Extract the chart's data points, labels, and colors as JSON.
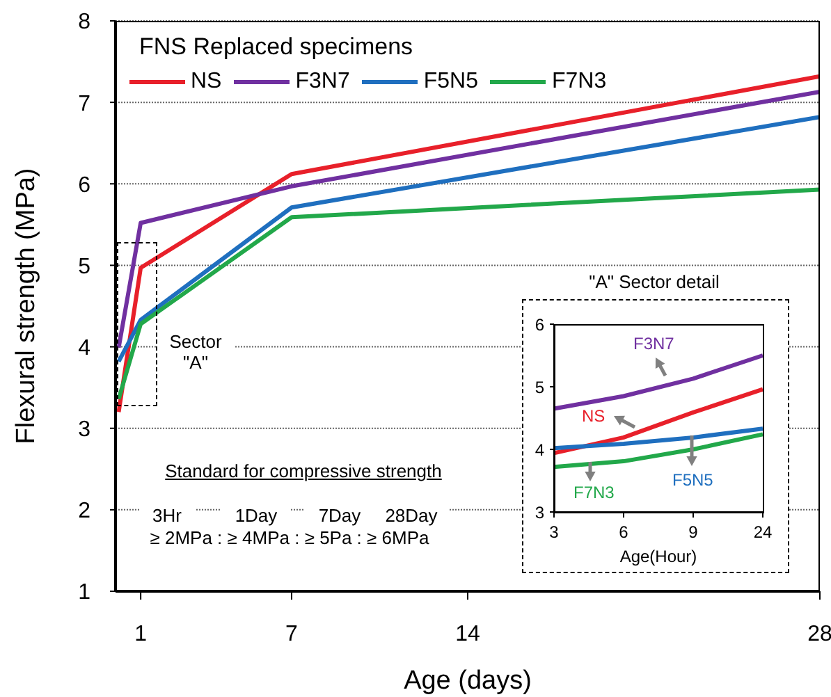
{
  "chart_data": [
    {
      "type": "line",
      "legend_title": "FNS Replaced specimens",
      "legend": "top left",
      "xlabel": "Age (days)",
      "ylabel": "Flexural strength (MPa)",
      "x": [
        0.125,
        1,
        7,
        28
      ],
      "xlim": [
        0,
        28
      ],
      "xticks": [
        1,
        7,
        14,
        28
      ],
      "ylim": [
        1,
        8
      ],
      "yticks": [
        1,
        2,
        3,
        4,
        5,
        6,
        7,
        8
      ],
      "grid": "y",
      "series": [
        {
          "name": "NS",
          "color": "#e8202a",
          "values": [
            3.2,
            4.97,
            6.12,
            7.32
          ]
        },
        {
          "name": "F3N7",
          "color": "#7030a0",
          "values": [
            3.99,
            5.52,
            5.97,
            7.13
          ]
        },
        {
          "name": "F5N5",
          "color": "#1f6fbf",
          "values": [
            3.82,
            4.33,
            5.71,
            6.82
          ]
        },
        {
          "name": "F7N3",
          "color": "#22a84a",
          "values": [
            3.36,
            4.28,
            5.59,
            5.93
          ]
        }
      ],
      "annotations": [
        "Sector \"A\"",
        "Standard for compressive strength",
        "3Hr",
        "1Day",
        "7Day",
        "28Day",
        "≥ 2MPa : ≥ 4MPa : ≥ 5Pa : ≥ 6MPa"
      ]
    },
    {
      "type": "line",
      "title": "\"A\" Sector detail",
      "xlabel": "Age(Hour)",
      "categories": [
        "3",
        "6",
        "9",
        "24"
      ],
      "ylim": [
        3,
        6
      ],
      "yticks": [
        3,
        4,
        5,
        6
      ],
      "series": [
        {
          "name": "F3N7",
          "color": "#7030a0",
          "values": [
            4.65,
            4.85,
            5.13,
            5.5
          ]
        },
        {
          "name": "NS",
          "color": "#e8202a",
          "values": [
            3.94,
            4.19,
            4.59,
            4.96
          ]
        },
        {
          "name": "F5N5",
          "color": "#1f6fbf",
          "values": [
            4.02,
            4.09,
            4.19,
            4.33
          ]
        },
        {
          "name": "F7N3",
          "color": "#22a84a",
          "values": [
            3.72,
            3.81,
            4.0,
            4.24
          ]
        }
      ]
    }
  ]
}
